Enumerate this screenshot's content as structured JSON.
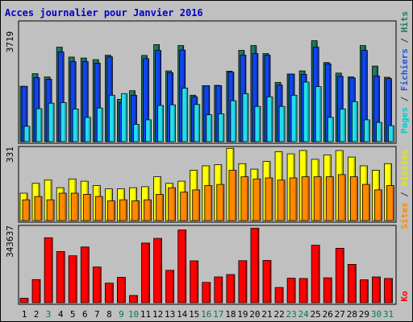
{
  "chart_data": {
    "type": "bar",
    "title": "Acces journalier pour Janvier 2016",
    "categories": [
      "1",
      "2",
      "3",
      "4",
      "5",
      "6",
      "7",
      "8",
      "9",
      "10",
      "11",
      "12",
      "13",
      "14",
      "15",
      "16",
      "17",
      "18",
      "19",
      "20",
      "21",
      "22",
      "23",
      "24",
      "25",
      "26",
      "27",
      "28",
      "29",
      "30",
      "31"
    ],
    "weekend_days": [
      3,
      9,
      10,
      16,
      17,
      23,
      24,
      30,
      31
    ],
    "panels": [
      {
        "id": "top",
        "max_label": "3719",
        "ylim": [
          0,
          3719
        ],
        "right_label_parts": [
          {
            "text": "Pages",
            "color": "#00cccc"
          },
          {
            "text": " / ",
            "color": "#333333"
          },
          {
            "text": "Fichiers",
            "color": "#2255dd"
          },
          {
            "text": " / ",
            "color": "#333333"
          },
          {
            "text": "Hits",
            "color": "#1e7a60"
          }
        ],
        "series": [
          {
            "name": "Hits",
            "color": "#1e7a60",
            "values": [
              1730,
              2120,
              2020,
              2950,
              2640,
              2610,
              2560,
              2700,
              1320,
              1590,
              2690,
              3030,
              2210,
              3000,
              1450,
              1750,
              1760,
              2200,
              2850,
              3000,
              2750,
              1850,
              2110,
              2210,
              3150,
              2470,
              2140,
              2020,
              3000,
              2360,
              2010
            ]
          },
          {
            "name": "Fichiers",
            "color": "#1144ee",
            "values": [
              1730,
              2000,
              1950,
              2800,
              2500,
              2500,
              2450,
              2650,
              1220,
              1450,
              2590,
              2850,
              2150,
              2860,
              1400,
              1750,
              1750,
              2170,
              2700,
              2750,
              2700,
              1770,
              2110,
              2100,
              2950,
              2430,
              2040,
              1990,
              2850,
              2050,
              1970
            ]
          },
          {
            "name": "Pages",
            "color": "#22ddee",
            "values": [
              480,
              1030,
              1200,
              1220,
              1020,
              760,
              1050,
              1450,
              1500,
              540,
              680,
              1130,
              1150,
              1670,
              1160,
              840,
              870,
              1280,
              1500,
              1100,
              1400,
              1100,
              1450,
              1860,
              1720,
              760,
              1020,
              1250,
              680,
              600,
              500
            ]
          }
        ]
      },
      {
        "id": "middle",
        "max_label": "331",
        "ylim": [
          0,
          331
        ],
        "right_label_parts": [
          {
            "text": "Sites",
            "color": "#ff8800"
          },
          {
            "text": " / ",
            "color": "#333333"
          },
          {
            "text": "Visites",
            "color": "#e8e800"
          }
        ],
        "series": [
          {
            "name": "Visites",
            "color": "#ffff00",
            "values": [
              125,
              170,
              185,
              150,
              190,
              180,
              160,
              145,
              145,
              150,
              155,
              200,
              170,
              180,
              230,
              250,
              255,
              330,
              260,
              235,
              270,
              315,
              305,
              320,
              280,
              300,
              320,
              290,
              250,
              230,
              260
            ]
          },
          {
            "name": "Sites",
            "color": "#ff8800",
            "values": [
              95,
              110,
              95,
              125,
              125,
              120,
              110,
              90,
              95,
              90,
              95,
              120,
              150,
              130,
              140,
              160,
              165,
              230,
              200,
              190,
              195,
              185,
              195,
              200,
              200,
              200,
              210,
              200,
              165,
              140,
              160
            ]
          }
        ]
      },
      {
        "id": "bottom",
        "max_label": "343637",
        "ylim": [
          0,
          343637
        ],
        "right_label_parts": [
          {
            "text": "Ko",
            "color": "#ff0000"
          }
        ],
        "series": [
          {
            "name": "Ko",
            "color": "#ff0000",
            "values": [
              20000,
              105000,
              295000,
              232000,
              213000,
              253000,
              162000,
              89000,
              115000,
              33000,
              271000,
              292000,
              147000,
              330000,
              190000,
              92000,
              117000,
              128000,
              191000,
              338000,
              192000,
              69000,
              111000,
              110000,
              261000,
              113000,
              247000,
              174000,
              104000,
              117000,
              110000
            ]
          }
        ]
      }
    ]
  }
}
